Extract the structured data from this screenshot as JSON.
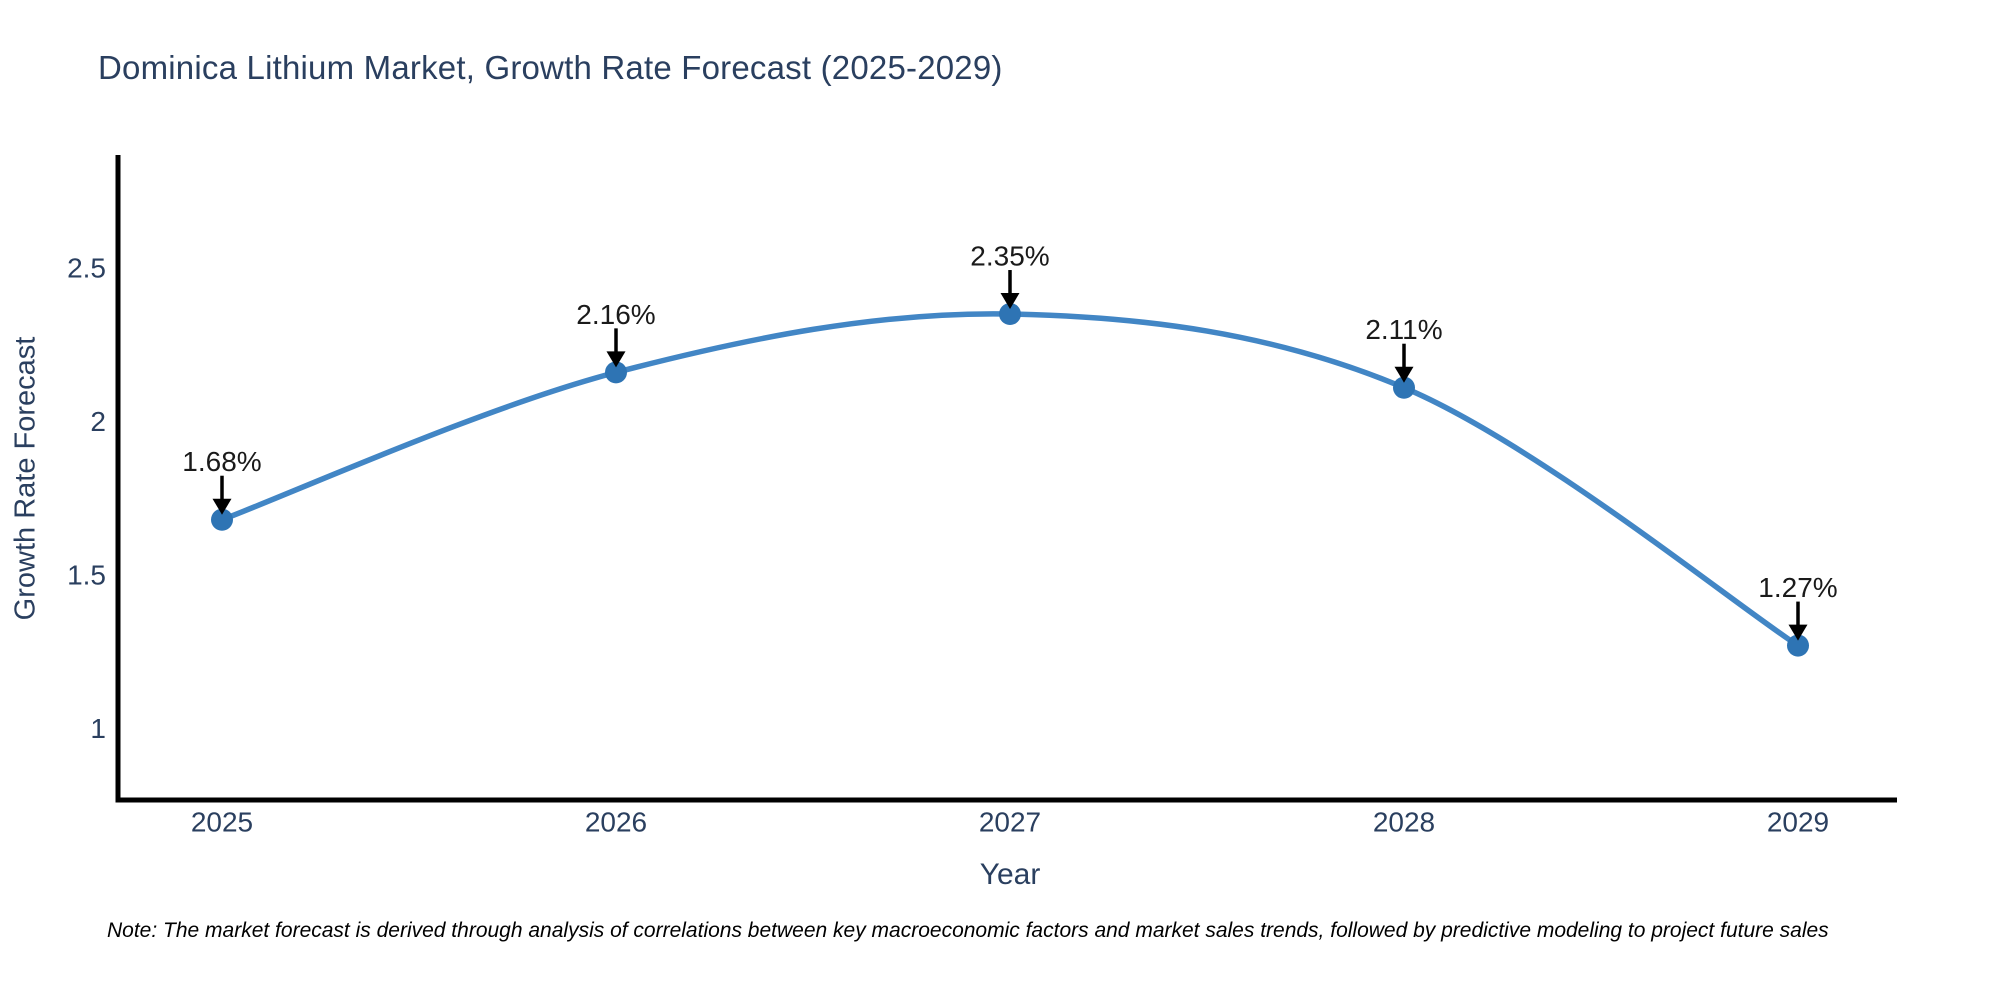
{
  "chart": {
    "title": "Dominica Lithium Market, Growth Rate Forecast (2025-2029)",
    "xlabel": "Year",
    "ylabel": "Growth Rate Forecast",
    "note": "Note: The market forecast is derived through analysis of correlations between key macroeconomic factors and market sales trends, followed by predictive modeling to project future sales"
  },
  "chart_data": {
    "type": "line",
    "title": "Dominica Lithium Market, Growth Rate Forecast (2025-2029)",
    "xlabel": "Year",
    "ylabel": "Growth Rate Forecast",
    "categories": [
      "2025",
      "2026",
      "2027",
      "2028",
      "2029"
    ],
    "series": [
      {
        "name": "Growth Rate Forecast",
        "values": [
          1.68,
          2.16,
          2.35,
          2.11,
          1.27
        ]
      }
    ],
    "point_labels": [
      "1.68%",
      "2.16%",
      "2.35%",
      "2.11%",
      "1.27%"
    ],
    "y_ticks": [
      1,
      1.5,
      2,
      2.5
    ],
    "ylim": [
      0.767,
      2.868
    ],
    "grid": false,
    "legend_position": "none",
    "curve": "spline",
    "markers": true,
    "annotations": "value-above-point-with-arrow",
    "colors": {
      "line": "#4286c5",
      "marker": "#2e74b4",
      "axis": "#000000",
      "tick_text": "#2a3f5f",
      "title_text": "#2a3f5f",
      "annotation_text": "#1a1a1a",
      "arrow": "#000000",
      "background": "#ffffff"
    }
  }
}
